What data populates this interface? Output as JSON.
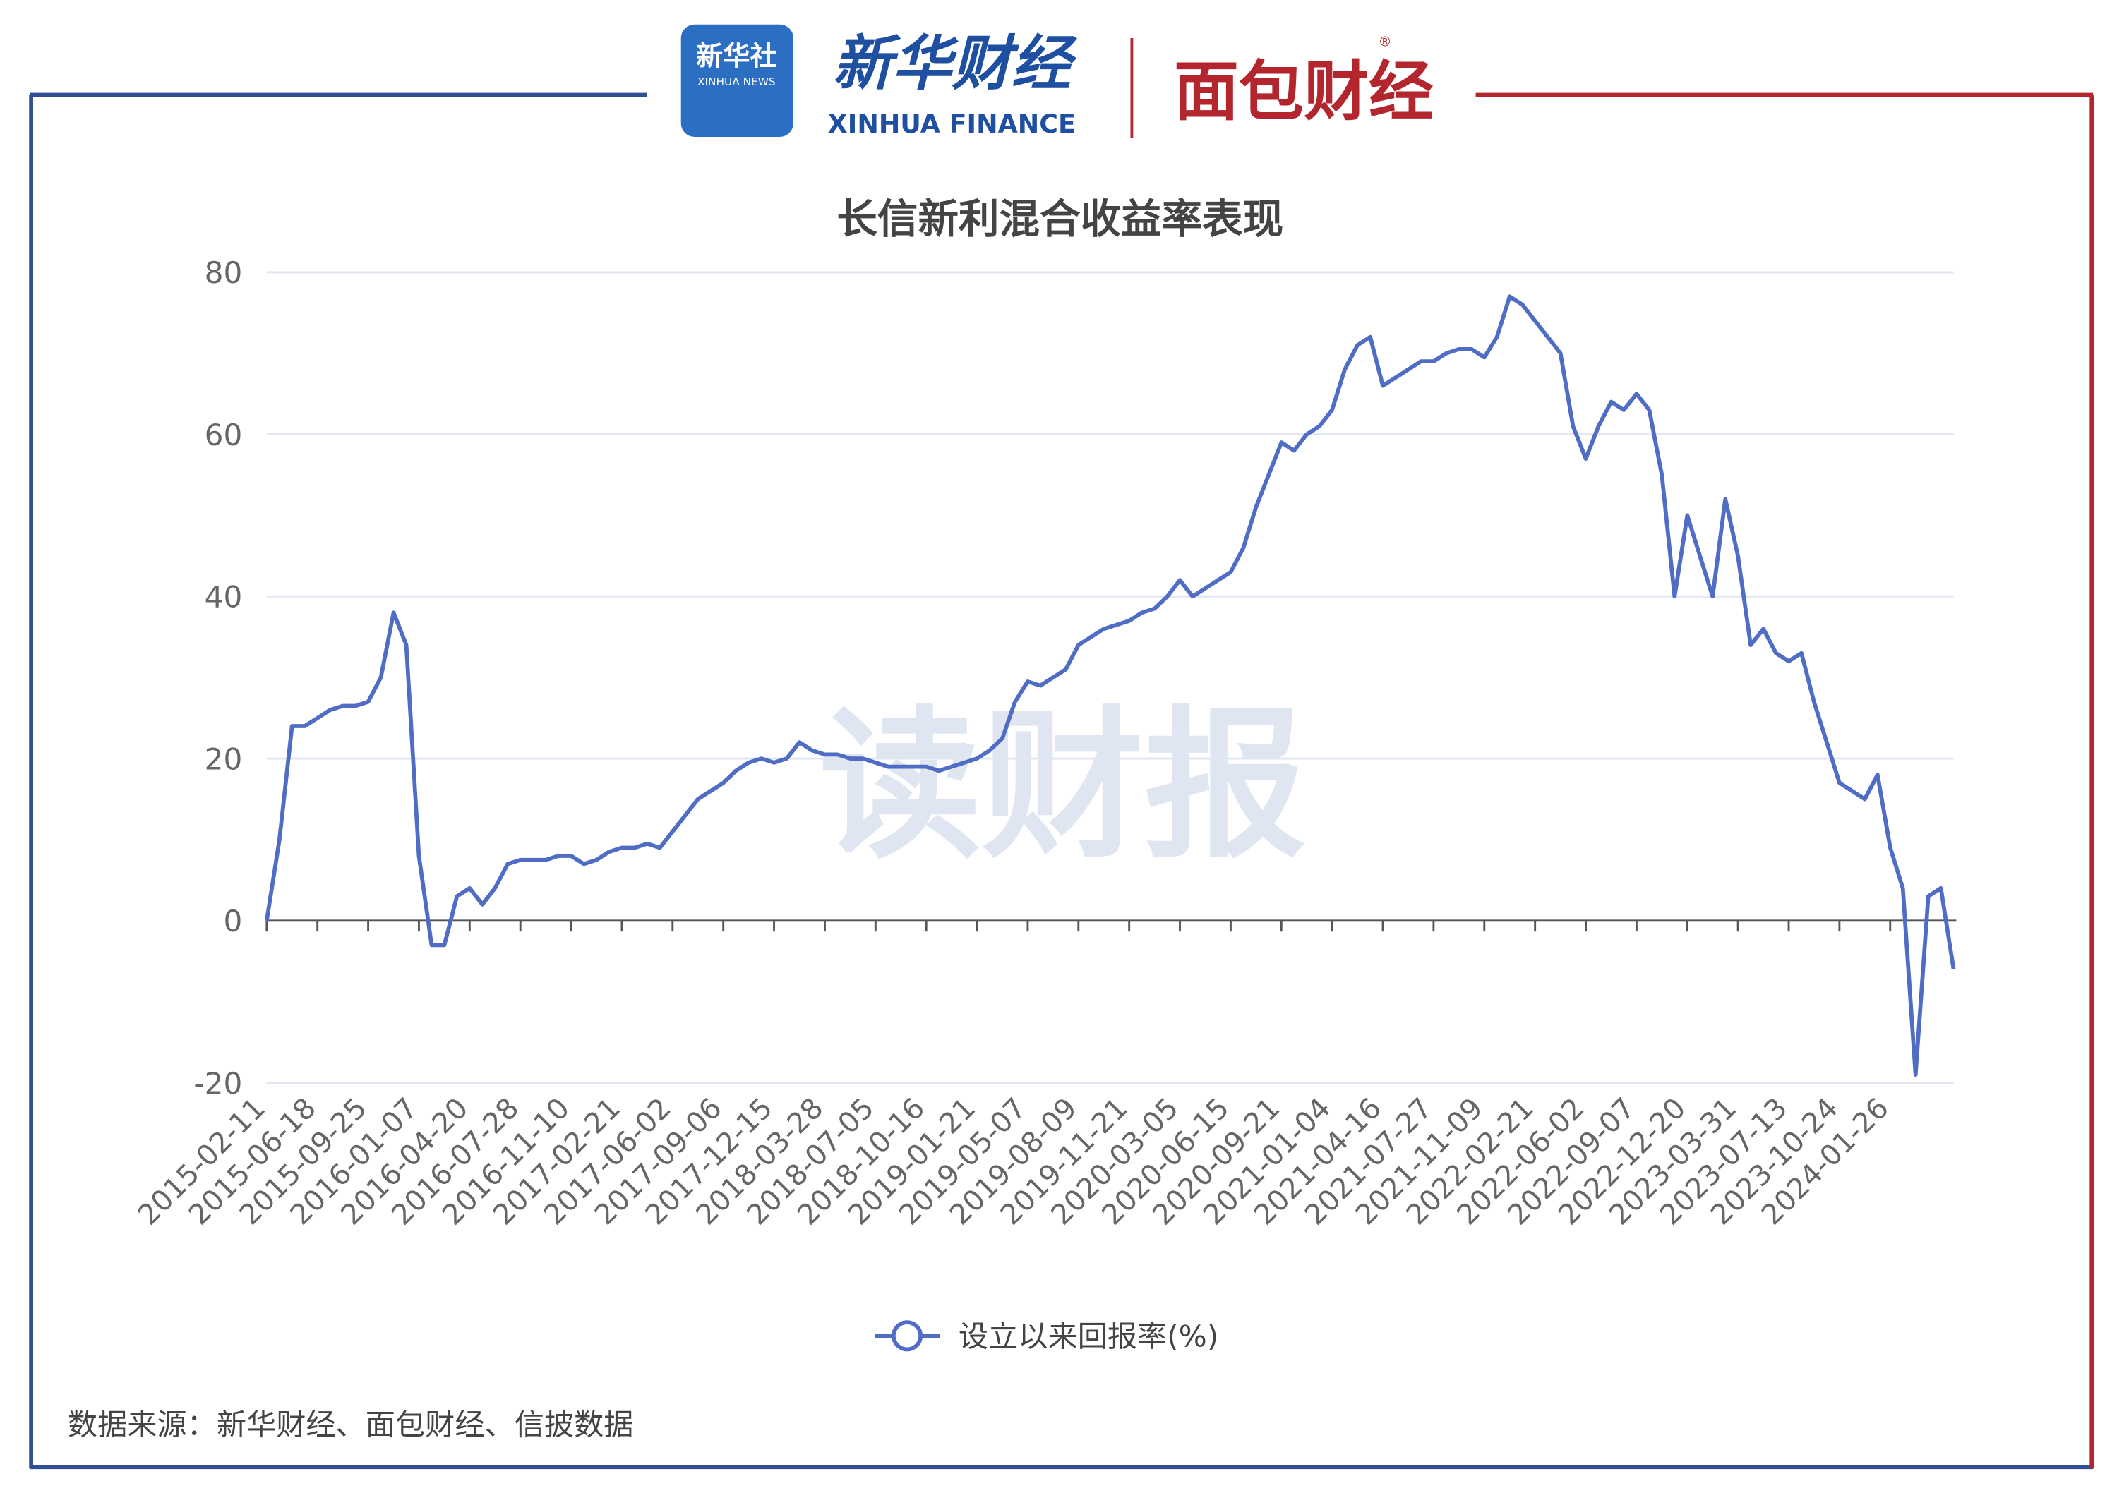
{
  "header": {
    "xinhua_news_logo": "新华社",
    "xinhua_news_sub": "XINHUA NEWS",
    "xinhua_finance_logo": "新华财经",
    "xinhua_finance_sub": "XINHUA FINANCE",
    "mianbao_logo": "面包财经",
    "registered_mark": "®"
  },
  "watermark": "读财报",
  "source": "数据来源：新华财经、面包财经、信披数据",
  "chart_data": {
    "type": "line",
    "title": "长信新利混合收益率表现",
    "categories": [
      "2015-02-11",
      null,
      null,
      null,
      "2015-06-18",
      null,
      null,
      null,
      "2015-09-25",
      null,
      null,
      null,
      "2016-01-07",
      null,
      null,
      null,
      "2016-04-20",
      null,
      null,
      null,
      "2016-07-28",
      null,
      null,
      null,
      "2016-11-10",
      null,
      null,
      null,
      "2017-02-21",
      null,
      null,
      null,
      "2017-06-02",
      null,
      null,
      null,
      "2017-09-06",
      null,
      null,
      null,
      "2017-12-15",
      null,
      null,
      null,
      "2018-03-28",
      null,
      null,
      null,
      "2018-07-05",
      null,
      null,
      null,
      "2018-10-16",
      null,
      null,
      null,
      "2019-01-21",
      null,
      null,
      null,
      "2019-05-07",
      null,
      null,
      null,
      "2019-08-09",
      null,
      null,
      null,
      "2019-11-21",
      null,
      null,
      null,
      "2020-03-05",
      null,
      null,
      null,
      "2020-06-15",
      null,
      null,
      null,
      "2020-09-21",
      null,
      null,
      null,
      "2021-01-04",
      null,
      null,
      null,
      "2021-04-16",
      null,
      null,
      null,
      "2021-07-27",
      null,
      null,
      null,
      "2021-11-09",
      null,
      null,
      null,
      "2022-02-21",
      null,
      null,
      null,
      "2022-06-02",
      null,
      null,
      null,
      "2022-09-07",
      null,
      null,
      null,
      "2022-12-20",
      null,
      null,
      null,
      "2023-03-31",
      null,
      null,
      null,
      "2023-07-13",
      null,
      null,
      null,
      "2023-10-24",
      null,
      null,
      null,
      "2024-01-26",
      null,
      null,
      null,
      null,
      null
    ],
    "series": [
      {
        "name": "设立以来回报率(%)",
        "color": "#4f6dc5",
        "values": [
          0,
          10,
          24,
          24,
          25,
          26,
          26.5,
          26.5,
          27,
          30,
          38,
          34,
          8,
          -3,
          -3,
          3,
          4,
          2,
          4,
          7,
          7.5,
          7.5,
          7.5,
          8,
          8,
          7,
          7.5,
          8.5,
          9,
          9,
          9.5,
          9,
          11,
          13,
          15,
          16,
          17,
          18.5,
          19.5,
          20,
          19.5,
          20,
          22,
          21,
          20.5,
          20.5,
          20,
          20,
          19.5,
          19,
          19,
          19,
          19,
          18.5,
          19,
          19.5,
          20,
          21,
          22.5,
          27,
          29.5,
          29,
          30,
          31,
          34,
          35,
          36,
          36.5,
          37,
          38,
          38.5,
          40,
          42,
          40,
          41,
          42,
          43,
          46,
          51,
          55,
          59,
          58,
          60,
          61,
          63,
          68,
          71,
          72,
          66,
          67,
          68,
          69,
          69,
          70,
          70.5,
          70.5,
          69.5,
          72,
          77,
          76,
          74,
          72,
          70,
          61,
          57,
          61,
          64,
          63,
          65,
          63,
          55,
          40,
          50,
          45,
          40,
          52,
          45,
          34,
          36,
          33,
          32,
          33,
          27,
          22,
          17,
          16,
          15,
          18,
          9,
          4,
          -19,
          3,
          4,
          -6
        ]
      }
    ],
    "ylim": [
      -20,
      80
    ],
    "yticks": [
      -20,
      0,
      20,
      40,
      60,
      80
    ],
    "grid": true,
    "legend": "bottom"
  }
}
